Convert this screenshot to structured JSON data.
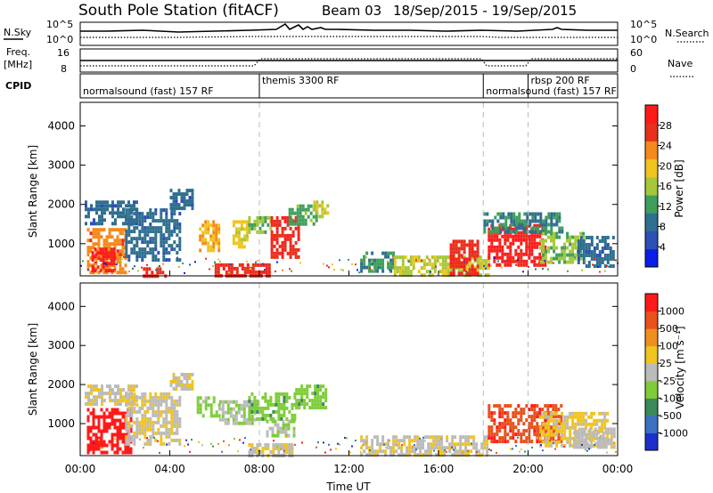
{
  "header": {
    "station": "South Pole Station (fitACF)",
    "beam": "Beam 03",
    "dates": "18/Sep/2015 - 19/Sep/2015"
  },
  "summary": {
    "nsky_label": "N.Sky",
    "nsearch_label": "N.Search",
    "nsky_ticks": [
      "10^5",
      "10^0"
    ],
    "freq_label": "Freq.",
    "freq_unit": "[MHz]",
    "freq_ticks": [
      "16",
      "8"
    ],
    "nave_label": "Nave",
    "nave_ticks": [
      "60",
      "0"
    ],
    "cpid_label": "CPID",
    "cpid_segments": [
      {
        "label": "normalsound (fast) 157 RF",
        "start_h": 0,
        "end_h": 8
      },
      {
        "label": "themis 3300 RF",
        "start_h": 8,
        "end_h": 18
      },
      {
        "label": "normalsound (fast) 157 RF",
        "start_h": 18,
        "end_h": 24
      },
      {
        "label": "rbsp 200 RF",
        "start_h": 20,
        "end_h": 24
      }
    ]
  },
  "power_panel": {
    "ylabel": "Slant Range [km]",
    "yticks": [
      "1000",
      "2000",
      "3000",
      "4000"
    ],
    "colorbar_label": "Power [dB]",
    "colorbar_ticks": [
      "4",
      "8",
      "12",
      "16",
      "20",
      "24",
      "28"
    ]
  },
  "velocity_panel": {
    "ylabel": "Slant Range [km]",
    "yticks": [
      "1000",
      "2000",
      "3000",
      "4000"
    ],
    "colorbar_label": "Velocity [m s⁻¹]",
    "colorbar_ticks": [
      "1000",
      "500",
      "100",
      "25",
      "-25",
      "-100",
      "-500",
      "-1000"
    ]
  },
  "xaxis": {
    "xlabel": "Time UT",
    "ticks": [
      "00:00",
      "04:00",
      "08:00",
      "12:00",
      "16:00",
      "20:00",
      "00:00"
    ]
  },
  "colors": {
    "power_scale": [
      "#0a1ee6",
      "#2c4fb4",
      "#2f6f8f",
      "#3f9f5a",
      "#a4c83a",
      "#f0c41f",
      "#f58a1c",
      "#e8301c",
      "#ff1a1a"
    ],
    "velocity_scale": [
      "#1c2fcc",
      "#3a6fc4",
      "#3a8a5a",
      "#7fcc3a",
      "#bbbbbb",
      "#f0c41f",
      "#f0901c",
      "#e8501c",
      "#ff1a1a"
    ]
  },
  "chart_data": [
    {
      "type": "heatmap",
      "title": "Power",
      "x_range_h": [
        0,
        24
      ],
      "ylim": [
        180,
        4600
      ],
      "zlabel": "Power [dB]",
      "zlim": [
        0,
        30
      ],
      "regions": [
        {
          "t0": 0.3,
          "t1": 2.0,
          "r0": 250,
          "r1": 1400,
          "value": 22
        },
        {
          "t0": 0.5,
          "t1": 1.5,
          "r0": 300,
          "r1": 900,
          "value": 28
        },
        {
          "t0": 0.2,
          "t1": 2.5,
          "r0": 1500,
          "r1": 2100,
          "value": 8
        },
        {
          "t0": 2.0,
          "t1": 4.5,
          "r0": 600,
          "r1": 1900,
          "value": 8
        },
        {
          "t0": 2.8,
          "t1": 3.8,
          "r0": 180,
          "r1": 400,
          "value": 26
        },
        {
          "t0": 4.0,
          "t1": 5.0,
          "r0": 1900,
          "r1": 2400,
          "value": 8
        },
        {
          "t0": 5.3,
          "t1": 6.2,
          "r0": 800,
          "r1": 1600,
          "value": 20
        },
        {
          "t0": 6.8,
          "t1": 7.5,
          "r0": 900,
          "r1": 1600,
          "value": 18
        },
        {
          "t0": 7.5,
          "t1": 8.5,
          "r0": 1300,
          "r1": 1700,
          "value": 14
        },
        {
          "t0": 8.5,
          "t1": 9.7,
          "r0": 700,
          "r1": 1700,
          "value": 26
        },
        {
          "t0": 9.3,
          "t1": 10.5,
          "r0": 1500,
          "r1": 2000,
          "value": 12
        },
        {
          "t0": 10.4,
          "t1": 11.0,
          "r0": 1700,
          "r1": 2100,
          "value": 16
        },
        {
          "t0": 6.0,
          "t1": 8.5,
          "r0": 180,
          "r1": 500,
          "value": 26
        },
        {
          "t0": 12.5,
          "t1": 14.0,
          "r0": 300,
          "r1": 800,
          "value": 10
        },
        {
          "t0": 14.0,
          "t1": 18.2,
          "r0": 200,
          "r1": 700,
          "value": 16
        },
        {
          "t0": 16.5,
          "t1": 17.7,
          "r0": 200,
          "r1": 1100,
          "value": 26
        },
        {
          "t0": 18.2,
          "t1": 20.8,
          "r0": 500,
          "r1": 1500,
          "value": 28
        },
        {
          "t0": 18.0,
          "t1": 21.5,
          "r0": 1300,
          "r1": 1800,
          "value": 10
        },
        {
          "t0": 20.5,
          "t1": 22.5,
          "r0": 500,
          "r1": 1300,
          "value": 14
        },
        {
          "t0": 22.2,
          "t1": 23.8,
          "r0": 400,
          "r1": 1200,
          "value": 8
        }
      ]
    },
    {
      "type": "heatmap",
      "title": "Velocity",
      "x_range_h": [
        0,
        24
      ],
      "ylim": [
        180,
        4600
      ],
      "zlabel": "Velocity [m s-1]",
      "zlim": [
        -1000,
        1000
      ],
      "regions": [
        {
          "t0": 0.3,
          "t1": 2.3,
          "r0": 250,
          "r1": 1400,
          "value": 1000
        },
        {
          "t0": 0.2,
          "t1": 2.5,
          "r0": 1500,
          "r1": 2000,
          "value": 100
        },
        {
          "t0": 2.0,
          "t1": 4.5,
          "r0": 500,
          "r1": 1800,
          "value": 80
        },
        {
          "t0": 4.0,
          "t1": 5.0,
          "r0": 1900,
          "r1": 2300,
          "value": 60
        },
        {
          "t0": 5.2,
          "t1": 6.2,
          "r0": 1200,
          "r1": 1700,
          "value": -200
        },
        {
          "t0": 6.2,
          "t1": 7.8,
          "r0": 1000,
          "r1": 1600,
          "value": -100
        },
        {
          "t0": 7.5,
          "t1": 9.6,
          "r0": 1100,
          "r1": 1800,
          "value": -250
        },
        {
          "t0": 8.3,
          "t1": 9.6,
          "r0": 700,
          "r1": 1100,
          "value": -100
        },
        {
          "t0": 9.6,
          "t1": 11.0,
          "r0": 1400,
          "r1": 2000,
          "value": -250
        },
        {
          "t0": 7.5,
          "t1": 9.5,
          "r0": 180,
          "r1": 500,
          "value": 60
        },
        {
          "t0": 12.5,
          "t1": 18.2,
          "r0": 200,
          "r1": 700,
          "value": 70
        },
        {
          "t0": 18.2,
          "t1": 21.5,
          "r0": 500,
          "r1": 1500,
          "value": 700
        },
        {
          "t0": 20.5,
          "t1": 23.5,
          "r0": 400,
          "r1": 1300,
          "value": 150
        },
        {
          "t0": 22.0,
          "t1": 23.9,
          "r0": 400,
          "r1": 900,
          "value": 20
        }
      ]
    }
  ]
}
